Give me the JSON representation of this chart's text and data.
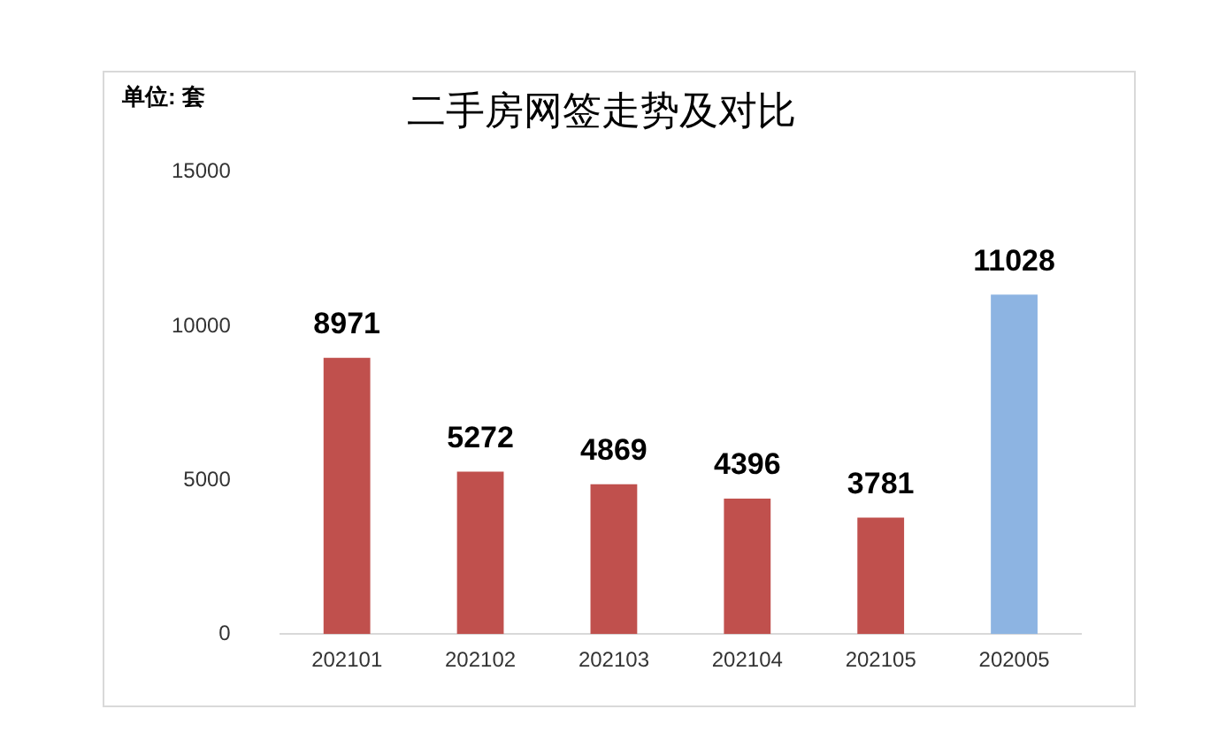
{
  "chart_data": {
    "type": "bar",
    "title": "二手房网签走势及对比",
    "annotations": [
      "单位: 套"
    ],
    "categories": [
      "202101",
      "202102",
      "202103",
      "202104",
      "202105",
      "202005"
    ],
    "values": [
      8971,
      5272,
      4869,
      4396,
      3781,
      11028
    ],
    "colors": [
      "#c0504d",
      "#c0504d",
      "#c0504d",
      "#c0504d",
      "#c0504d",
      "#8db4e2"
    ],
    "ylim": [
      0,
      15000
    ],
    "yticks": [
      0,
      5000,
      10000,
      15000
    ],
    "grid": false,
    "data_labels": true
  }
}
